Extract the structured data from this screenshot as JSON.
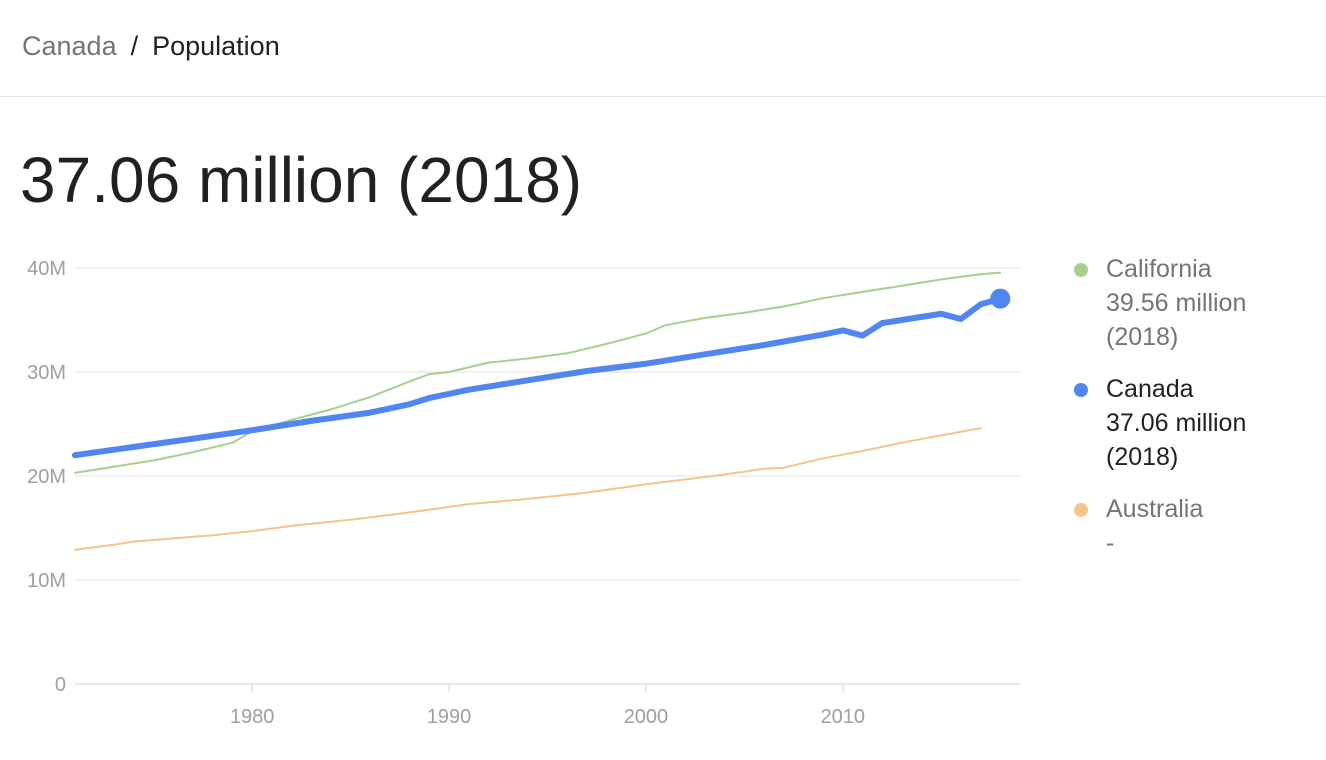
{
  "breadcrumb": {
    "parent": "Canada",
    "separator": "/",
    "current": "Population"
  },
  "headline": "37.06 million (2018)",
  "legend": [
    {
      "name": "California",
      "value": "39.56 million",
      "year": "(2018)",
      "color": "#a8d08d",
      "active": false
    },
    {
      "name": "Canada",
      "value": "37.06 million",
      "year": "(2018)",
      "color": "#4f86f0",
      "active": true
    },
    {
      "name": "Australia",
      "value": "-",
      "year": "",
      "color": "#f5c48a",
      "active": false
    }
  ],
  "chart_data": {
    "type": "line",
    "xlim": [
      1971,
      2019
    ],
    "ylim": [
      0,
      40000000
    ],
    "x_ticks": [
      1980,
      1990,
      2000,
      2010
    ],
    "x_tick_labels": [
      "1980",
      "1990",
      "2000",
      "2010"
    ],
    "y_ticks": [
      0,
      10000000,
      20000000,
      30000000,
      40000000
    ],
    "y_tick_labels": [
      "0",
      "10M",
      "20M",
      "30M",
      "40M"
    ],
    "grid": true,
    "legend_position": "right",
    "series": [
      {
        "name": "California",
        "color": "#a8d08d",
        "width": 2,
        "x": [
          1971,
          1973,
          1975,
          1977,
          1979,
          1980,
          1982,
          1984,
          1986,
          1988,
          1989,
          1990,
          1992,
          1994,
          1996,
          1998,
          2000,
          2001,
          2003,
          2005,
          2007,
          2009,
          2011,
          2013,
          2015,
          2017,
          2018
        ],
        "y": [
          20300000,
          20900000,
          21500000,
          22300000,
          23200000,
          24300000,
          25400000,
          26400000,
          27600000,
          29100000,
          29800000,
          30000000,
          30900000,
          31300000,
          31800000,
          32700000,
          33700000,
          34500000,
          35200000,
          35700000,
          36300000,
          37100000,
          37700000,
          38300000,
          38900000,
          39400000,
          39560000
        ]
      },
      {
        "name": "Canada",
        "color": "#4f86f0",
        "width": 6,
        "x": [
          1971,
          1974,
          1977,
          1980,
          1983,
          1986,
          1988,
          1989,
          1991,
          1994,
          1997,
          2000,
          2003,
          2006,
          2009,
          2010,
          2011,
          2012,
          2014,
          2015,
          2016,
          2017,
          2018
        ],
        "y": [
          22000000,
          22800000,
          23600000,
          24400000,
          25300000,
          26100000,
          26900000,
          27500000,
          28300000,
          29200000,
          30100000,
          30800000,
          31700000,
          32600000,
          33600000,
          34000000,
          33500000,
          34700000,
          35300000,
          35600000,
          35100000,
          36500000,
          37060000
        ]
      },
      {
        "name": "Australia",
        "color": "#f5c48a",
        "width": 2,
        "x": [
          1971,
          1973,
          1974,
          1976,
          1978,
          1980,
          1982,
          1985,
          1988,
          1991,
          1994,
          1997,
          2000,
          2003,
          2005,
          2006,
          2007,
          2009,
          2011,
          2013,
          2015,
          2017
        ],
        "y": [
          12900000,
          13400000,
          13700000,
          14000000,
          14300000,
          14700000,
          15200000,
          15800000,
          16500000,
          17300000,
          17800000,
          18400000,
          19200000,
          19900000,
          20400000,
          20700000,
          20800000,
          21700000,
          22400000,
          23200000,
          23900000,
          24600000
        ]
      }
    ],
    "highlight_point": {
      "series": "Canada",
      "x": 2018,
      "y": 37060000
    }
  }
}
